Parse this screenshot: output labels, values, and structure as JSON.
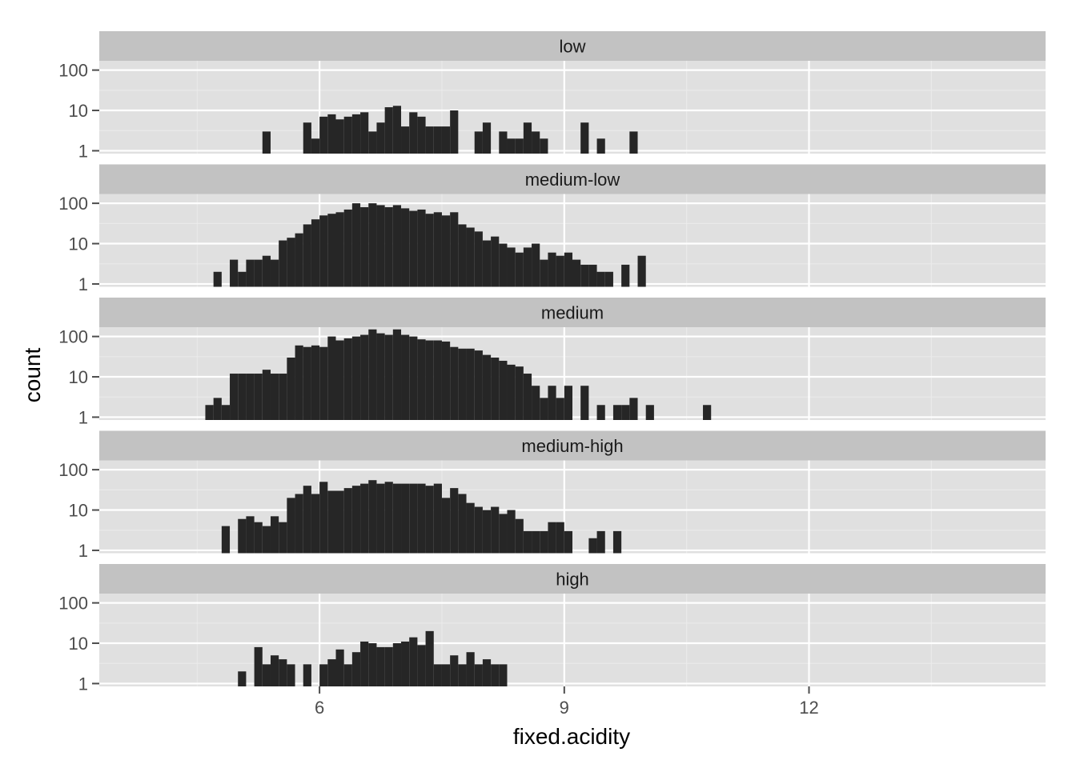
{
  "chart_data": {
    "type": "bar",
    "subtype": "faceted-histogram",
    "xlabel": "fixed.acidity",
    "ylabel": "count",
    "y_scale": "log10",
    "xlim": [
      3.3,
      14.9
    ],
    "ylim": [
      0.85,
      170
    ],
    "bin_width": 0.1,
    "x_ticks": [
      6,
      9,
      12
    ],
    "x_tick_labels": [
      "6",
      "9",
      "12"
    ],
    "y_ticks": [
      1,
      10,
      100
    ],
    "y_tick_labels": [
      "1",
      "10",
      "100"
    ],
    "colors": {
      "panel": "#e0e0e0",
      "strip": "#c2c2c2",
      "bar": "#262626",
      "grid": "#ffffff"
    },
    "panels": [
      {
        "name": "low",
        "bins": [
          [
            5.3,
            3
          ],
          [
            5.8,
            5
          ],
          [
            5.9,
            2
          ],
          [
            6.0,
            7
          ],
          [
            6.1,
            8
          ],
          [
            6.2,
            6
          ],
          [
            6.3,
            7
          ],
          [
            6.4,
            8
          ],
          [
            6.5,
            9
          ],
          [
            6.6,
            3
          ],
          [
            6.7,
            5
          ],
          [
            6.8,
            12
          ],
          [
            6.9,
            13
          ],
          [
            7.0,
            4
          ],
          [
            7.1,
            9
          ],
          [
            7.2,
            7
          ],
          [
            7.3,
            4
          ],
          [
            7.4,
            4
          ],
          [
            7.5,
            4
          ],
          [
            7.6,
            10
          ],
          [
            7.9,
            3
          ],
          [
            8.0,
            5
          ],
          [
            8.2,
            3
          ],
          [
            8.3,
            2
          ],
          [
            8.4,
            2
          ],
          [
            8.5,
            5
          ],
          [
            8.6,
            3
          ],
          [
            8.7,
            2
          ],
          [
            9.2,
            5
          ],
          [
            9.4,
            2
          ],
          [
            9.8,
            3
          ]
        ]
      },
      {
        "name": "medium-low",
        "bins": [
          [
            4.7,
            2
          ],
          [
            4.9,
            4
          ],
          [
            5.0,
            2
          ],
          [
            5.1,
            4
          ],
          [
            5.2,
            4
          ],
          [
            5.3,
            5
          ],
          [
            5.4,
            4
          ],
          [
            5.5,
            12
          ],
          [
            5.6,
            14
          ],
          [
            5.7,
            18
          ],
          [
            5.8,
            30
          ],
          [
            5.9,
            40
          ],
          [
            6.0,
            50
          ],
          [
            6.1,
            55
          ],
          [
            6.2,
            60
          ],
          [
            6.3,
            70
          ],
          [
            6.4,
            100
          ],
          [
            6.5,
            80
          ],
          [
            6.6,
            100
          ],
          [
            6.7,
            90
          ],
          [
            6.8,
            80
          ],
          [
            6.9,
            90
          ],
          [
            7.0,
            75
          ],
          [
            7.1,
            65
          ],
          [
            7.2,
            70
          ],
          [
            7.3,
            55
          ],
          [
            7.4,
            60
          ],
          [
            7.5,
            50
          ],
          [
            7.6,
            60
          ],
          [
            7.7,
            30
          ],
          [
            7.8,
            25
          ],
          [
            7.9,
            20
          ],
          [
            8.0,
            12
          ],
          [
            8.1,
            15
          ],
          [
            8.2,
            10
          ],
          [
            8.3,
            8
          ],
          [
            8.4,
            6
          ],
          [
            8.5,
            8
          ],
          [
            8.6,
            10
          ],
          [
            8.7,
            4
          ],
          [
            8.8,
            6
          ],
          [
            8.9,
            5
          ],
          [
            9.0,
            6
          ],
          [
            9.1,
            4
          ],
          [
            9.2,
            3
          ],
          [
            9.3,
            3
          ],
          [
            9.4,
            2
          ],
          [
            9.5,
            2
          ],
          [
            9.7,
            3
          ],
          [
            9.9,
            5
          ]
        ]
      },
      {
        "name": "medium",
        "bins": [
          [
            4.6,
            2
          ],
          [
            4.7,
            3
          ],
          [
            4.8,
            2
          ],
          [
            4.9,
            12
          ],
          [
            5.0,
            12
          ],
          [
            5.1,
            12
          ],
          [
            5.2,
            12
          ],
          [
            5.3,
            15
          ],
          [
            5.4,
            12
          ],
          [
            5.5,
            12
          ],
          [
            5.6,
            30
          ],
          [
            5.7,
            60
          ],
          [
            5.8,
            55
          ],
          [
            5.9,
            60
          ],
          [
            6.0,
            55
          ],
          [
            6.1,
            100
          ],
          [
            6.2,
            80
          ],
          [
            6.3,
            90
          ],
          [
            6.4,
            100
          ],
          [
            6.5,
            110
          ],
          [
            6.6,
            150
          ],
          [
            6.7,
            120
          ],
          [
            6.8,
            110
          ],
          [
            6.9,
            150
          ],
          [
            7.0,
            110
          ],
          [
            7.1,
            100
          ],
          [
            7.2,
            85
          ],
          [
            7.3,
            80
          ],
          [
            7.4,
            80
          ],
          [
            7.5,
            75
          ],
          [
            7.6,
            55
          ],
          [
            7.7,
            50
          ],
          [
            7.8,
            50
          ],
          [
            7.9,
            45
          ],
          [
            8.0,
            35
          ],
          [
            8.1,
            30
          ],
          [
            8.2,
            25
          ],
          [
            8.3,
            20
          ],
          [
            8.4,
            18
          ],
          [
            8.5,
            12
          ],
          [
            8.6,
            6
          ],
          [
            8.7,
            3
          ],
          [
            8.8,
            6
          ],
          [
            8.9,
            3
          ],
          [
            9.0,
            6
          ],
          [
            9.2,
            6
          ],
          [
            9.4,
            2
          ],
          [
            9.6,
            2
          ],
          [
            9.7,
            2
          ],
          [
            9.8,
            3
          ],
          [
            10.0,
            2
          ],
          [
            10.7,
            2
          ]
        ]
      },
      {
        "name": "medium-high",
        "bins": [
          [
            4.8,
            4
          ],
          [
            5.0,
            6
          ],
          [
            5.1,
            7
          ],
          [
            5.2,
            5
          ],
          [
            5.3,
            4
          ],
          [
            5.4,
            7
          ],
          [
            5.5,
            5
          ],
          [
            5.6,
            20
          ],
          [
            5.7,
            25
          ],
          [
            5.8,
            40
          ],
          [
            5.9,
            25
          ],
          [
            6.0,
            50
          ],
          [
            6.1,
            30
          ],
          [
            6.2,
            30
          ],
          [
            6.3,
            35
          ],
          [
            6.4,
            40
          ],
          [
            6.5,
            45
          ],
          [
            6.6,
            55
          ],
          [
            6.7,
            45
          ],
          [
            6.8,
            50
          ],
          [
            6.9,
            45
          ],
          [
            7.0,
            45
          ],
          [
            7.1,
            45
          ],
          [
            7.2,
            45
          ],
          [
            7.3,
            40
          ],
          [
            7.4,
            45
          ],
          [
            7.5,
            20
          ],
          [
            7.6,
            35
          ],
          [
            7.7,
            25
          ],
          [
            7.8,
            15
          ],
          [
            7.9,
            12
          ],
          [
            8.0,
            10
          ],
          [
            8.1,
            12
          ],
          [
            8.2,
            8
          ],
          [
            8.3,
            10
          ],
          [
            8.4,
            6
          ],
          [
            8.5,
            3
          ],
          [
            8.6,
            3
          ],
          [
            8.7,
            3
          ],
          [
            8.8,
            5
          ],
          [
            8.9,
            5
          ],
          [
            9.0,
            3
          ],
          [
            9.3,
            2
          ],
          [
            9.4,
            3
          ],
          [
            9.6,
            3
          ]
        ]
      },
      {
        "name": "high",
        "bins": [
          [
            5.0,
            2
          ],
          [
            5.2,
            8
          ],
          [
            5.3,
            3
          ],
          [
            5.4,
            5
          ],
          [
            5.5,
            4
          ],
          [
            5.6,
            3
          ],
          [
            5.8,
            3
          ],
          [
            6.0,
            3
          ],
          [
            6.1,
            4
          ],
          [
            6.2,
            7
          ],
          [
            6.3,
            3
          ],
          [
            6.4,
            6
          ],
          [
            6.5,
            11
          ],
          [
            6.6,
            10
          ],
          [
            6.7,
            8
          ],
          [
            6.8,
            8
          ],
          [
            6.9,
            10
          ],
          [
            7.0,
            11
          ],
          [
            7.1,
            14
          ],
          [
            7.2,
            9
          ],
          [
            7.3,
            20
          ],
          [
            7.4,
            3
          ],
          [
            7.5,
            3
          ],
          [
            7.6,
            5
          ],
          [
            7.7,
            3
          ],
          [
            7.8,
            6
          ],
          [
            7.9,
            3
          ],
          [
            8.0,
            4
          ],
          [
            8.1,
            3
          ],
          [
            8.2,
            3
          ]
        ]
      }
    ]
  }
}
